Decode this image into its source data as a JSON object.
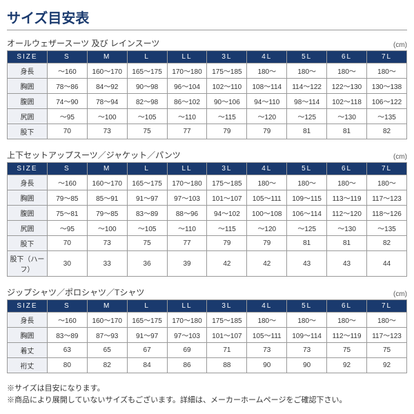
{
  "page_title": "サイズ目安表",
  "unit_label": "(cm)",
  "size_headers": [
    "SIZE",
    "S",
    "M",
    "L",
    "LL",
    "3L",
    "4L",
    "5L",
    "6L",
    "7L"
  ],
  "colors": {
    "header_bg": "#1a3a6e",
    "header_fg": "#ffffff",
    "rowhead_bg": "#eef0f5",
    "border": "#999999"
  },
  "sections": [
    {
      "title": "オールウェザースーツ 及び レインスーツ",
      "rows": [
        {
          "label": "身長",
          "cells": [
            "～160",
            "160～170",
            "165～175",
            "170～180",
            "175～185",
            "180～",
            "180～",
            "180～",
            "180～"
          ]
        },
        {
          "label": "胸囲",
          "cells": [
            "78～86",
            "84～92",
            "90～98",
            "96～104",
            "102～110",
            "108～114",
            "114～122",
            "122～130",
            "130～138"
          ]
        },
        {
          "label": "腹囲",
          "cells": [
            "74～90",
            "78～94",
            "82～98",
            "86～102",
            "90～106",
            "94～110",
            "98～114",
            "102～118",
            "106～122"
          ]
        },
        {
          "label": "尻囲",
          "cells": [
            "～95",
            "～100",
            "～105",
            "～110",
            "～115",
            "～120",
            "～125",
            "～130",
            "～135"
          ]
        },
        {
          "label": "股下",
          "cells": [
            "70",
            "73",
            "75",
            "77",
            "79",
            "79",
            "81",
            "81",
            "82"
          ]
        }
      ]
    },
    {
      "title": "上下セットアップスーツ／ジャケット／パンツ",
      "rows": [
        {
          "label": "身長",
          "cells": [
            "～160",
            "160～170",
            "165～175",
            "170～180",
            "175～185",
            "180～",
            "180～",
            "180～",
            "180～"
          ]
        },
        {
          "label": "胸囲",
          "cells": [
            "79～85",
            "85～91",
            "91～97",
            "97～103",
            "101～107",
            "105～111",
            "109～115",
            "113～119",
            "117～123"
          ]
        },
        {
          "label": "腹囲",
          "cells": [
            "75～81",
            "79～85",
            "83～89",
            "88～96",
            "94～102",
            "100～108",
            "106～114",
            "112～120",
            "118～126"
          ]
        },
        {
          "label": "尻囲",
          "cells": [
            "～95",
            "～100",
            "～105",
            "～110",
            "～115",
            "～120",
            "～125",
            "～130",
            "～135"
          ]
        },
        {
          "label": "股下",
          "cells": [
            "70",
            "73",
            "75",
            "77",
            "79",
            "79",
            "81",
            "81",
            "82"
          ]
        },
        {
          "label": "股下（ハーフ）",
          "cells": [
            "30",
            "33",
            "36",
            "39",
            "42",
            "42",
            "43",
            "43",
            "44"
          ]
        }
      ]
    },
    {
      "title": "ジップシャツ／ポロシャツ／Tシャツ",
      "rows": [
        {
          "label": "身長",
          "cells": [
            "～160",
            "160～170",
            "165～175",
            "170～180",
            "175～185",
            "180～",
            "180～",
            "180～",
            "180～"
          ]
        },
        {
          "label": "胸囲",
          "cells": [
            "83～89",
            "87～93",
            "91～97",
            "97～103",
            "101～107",
            "105～111",
            "109～114",
            "112～119",
            "117～123"
          ]
        },
        {
          "label": "着丈",
          "cells": [
            "63",
            "65",
            "67",
            "69",
            "71",
            "73",
            "73",
            "75",
            "75"
          ]
        },
        {
          "label": "裄丈",
          "cells": [
            "80",
            "82",
            "84",
            "86",
            "88",
            "90",
            "90",
            "92",
            "92"
          ]
        }
      ]
    }
  ],
  "footnotes": [
    "※サイズは目安になります。",
    "※商品により展開していないサイズもございます。詳細は、メーカーホームページをご確認下さい。"
  ]
}
